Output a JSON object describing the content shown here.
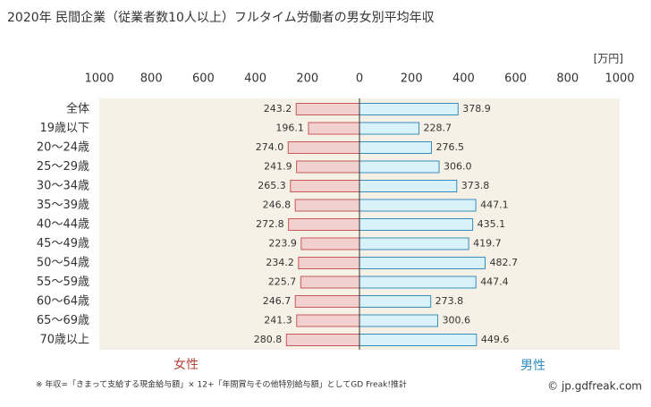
{
  "chart_data": {
    "type": "butterfly",
    "title": "2020年 民間企業（従業者数10人以上）フルタイム労働者の男女別平均年収",
    "unit": "[万円]",
    "categories": [
      "全体",
      "19歳以下",
      "20〜24歳",
      "25〜29歳",
      "30〜34歳",
      "35〜39歳",
      "40〜44歳",
      "45〜49歳",
      "50〜54歳",
      "55〜59歳",
      "60〜64歳",
      "65〜69歳",
      "70歳以上"
    ],
    "series": [
      {
        "name": "女性",
        "color": "#f2d0d0",
        "edge": "#c55a5a",
        "label_color": "#b5443c",
        "values": [
          243.2,
          196.1,
          274.0,
          241.9,
          265.3,
          246.8,
          272.8,
          223.9,
          234.2,
          225.7,
          246.7,
          241.3,
          280.8
        ],
        "value_labels": [
          "243.2",
          "196.1",
          "274.0",
          "241.9",
          "265.3",
          "246.8",
          "272.8",
          "223.9",
          "234.2",
          "225.7",
          "246.7",
          "241.3",
          "280.8"
        ]
      },
      {
        "name": "男性",
        "color": "#d9f2fa",
        "edge": "#3a8dbb",
        "label_color": "#2e8bc0",
        "values": [
          378.9,
          228.7,
          276.5,
          306.0,
          373.8,
          447.1,
          435.1,
          419.7,
          482.7,
          447.4,
          273.8,
          300.6,
          449.6
        ],
        "value_labels": [
          "378.9",
          "228.7",
          "276.5",
          "306.0",
          "373.8",
          "447.1",
          "435.1",
          "419.7",
          "482.7",
          "447.4",
          "273.8",
          "300.6",
          "449.6"
        ]
      }
    ],
    "xlim": [
      0,
      1000
    ],
    "xticks": [
      0,
      200,
      400,
      600,
      800,
      1000
    ],
    "note": "※ 年収=「きまって支給する現金給与額」× 12+「年間賞与その他特別給与額」としてGD Freak!推計",
    "source": "© jp.gdfreak.com"
  }
}
